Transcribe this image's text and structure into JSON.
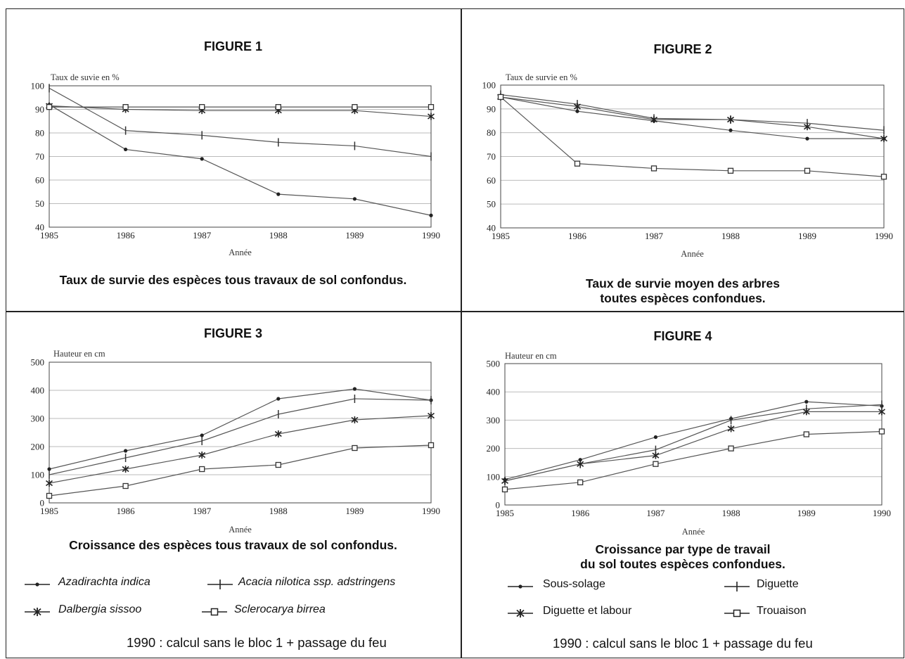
{
  "chart_data": [
    {
      "type": "line",
      "figure_label": "FIGURE 1",
      "title": "Taux de survie des espèces tous travaux de sol confondus.",
      "ylabel": "Taux de suvie en %",
      "xlabel": "Année",
      "x": [
        1985,
        1986,
        1987,
        1988,
        1989,
        1990
      ],
      "ylim": [
        40,
        100
      ],
      "yticks": [
        40,
        50,
        60,
        70,
        80,
        90,
        100
      ],
      "grid": true,
      "series": [
        {
          "marker": "dot",
          "values": [
            92,
            73,
            69,
            54,
            52,
            45
          ]
        },
        {
          "marker": "plus",
          "values": [
            99,
            81,
            79,
            76,
            74.5,
            70
          ]
        },
        {
          "marker": "star",
          "values": [
            91.5,
            90,
            89.5,
            89.5,
            89.5,
            87
          ]
        },
        {
          "marker": "square",
          "values": [
            91,
            91,
            91,
            91,
            91,
            91
          ]
        }
      ]
    },
    {
      "type": "line",
      "figure_label": "FIGURE 2",
      "title": "Taux de survie moyen des arbres toutes espèces confondues.",
      "title_lines": [
        "Taux de survie moyen des arbres",
        "toutes espèces confondues."
      ],
      "ylabel": "Taux de survie en %",
      "xlabel": "Année",
      "x": [
        1985,
        1986,
        1987,
        1988,
        1989,
        1990
      ],
      "ylim": [
        40,
        100
      ],
      "yticks": [
        40,
        50,
        60,
        70,
        80,
        90,
        100
      ],
      "grid": true,
      "series": [
        {
          "marker": "dot",
          "values": [
            95,
            89,
            85,
            81,
            77.5,
            77.5
          ]
        },
        {
          "marker": "plus",
          "values": [
            96,
            92,
            86,
            85.5,
            84,
            81
          ]
        },
        {
          "marker": "star",
          "values": [
            95,
            91,
            85.5,
            85.5,
            82.5,
            77.5
          ]
        },
        {
          "marker": "square",
          "values": [
            95,
            67,
            65,
            64,
            64,
            61.5
          ]
        }
      ]
    },
    {
      "type": "line",
      "figure_label": "FIGURE 3",
      "title": "Croissance des espèces tous travaux de sol confondus.",
      "ylabel": "Hauteur en cm",
      "xlabel": "Année",
      "x": [
        1985,
        1986,
        1987,
        1988,
        1989,
        1990
      ],
      "ylim": [
        0,
        500
      ],
      "yticks": [
        0,
        100,
        200,
        300,
        400,
        500
      ],
      "grid": true,
      "series": [
        {
          "name": "Azadirachta indica",
          "marker": "dot",
          "values": [
            120,
            185,
            240,
            370,
            405,
            365
          ]
        },
        {
          "name": "Acacia nilotica ssp. adstringens",
          "marker": "plus",
          "values": [
            100,
            160,
            220,
            315,
            370,
            365
          ]
        },
        {
          "name": "Dalbergia sissoo",
          "marker": "star",
          "values": [
            70,
            120,
            170,
            245,
            295,
            310
          ]
        },
        {
          "name": "Sclerocarya birrea",
          "marker": "square",
          "values": [
            25,
            60,
            120,
            135,
            195,
            205
          ]
        }
      ]
    },
    {
      "type": "line",
      "figure_label": "FIGURE 4",
      "title": "Croissance par type de travail du sol toutes espèces confondues.",
      "title_lines": [
        "Croissance par type de travail",
        "du sol toutes espèces confondues."
      ],
      "ylabel": "Hauteur en cm",
      "xlabel": "Année",
      "x": [
        1985,
        1986,
        1987,
        1988,
        1989,
        1990
      ],
      "ylim": [
        0,
        500
      ],
      "yticks": [
        0,
        100,
        200,
        300,
        400,
        500
      ],
      "grid": true,
      "series": [
        {
          "name": "Sous-solage",
          "marker": "dot",
          "values": [
            90,
            160,
            240,
            305,
            365,
            350
          ]
        },
        {
          "name": "Diguette",
          "marker": "plus",
          "values": [
            85,
            145,
            195,
            300,
            340,
            355
          ]
        },
        {
          "name": "Diguette et labour",
          "marker": "star",
          "values": [
            85,
            145,
            175,
            270,
            330,
            330
          ]
        },
        {
          "name": "Trouaison",
          "marker": "square",
          "values": [
            55,
            80,
            145,
            200,
            250,
            260
          ]
        }
      ]
    }
  ],
  "legends": {
    "fig3": [
      "Azadirachta indica",
      "Acacia nilotica ssp. adstringens",
      "Dalbergia sissoo",
      "Sclerocarya birrea"
    ],
    "fig4": [
      "Sous-solage",
      "Diguette",
      "Diguette et labour",
      "Trouaison"
    ]
  },
  "notes": {
    "fig3": "1990 : calcul sans le bloc 1 + passage du feu",
    "fig4": "1990 : calcul sans le bloc 1 + passage du feu"
  }
}
